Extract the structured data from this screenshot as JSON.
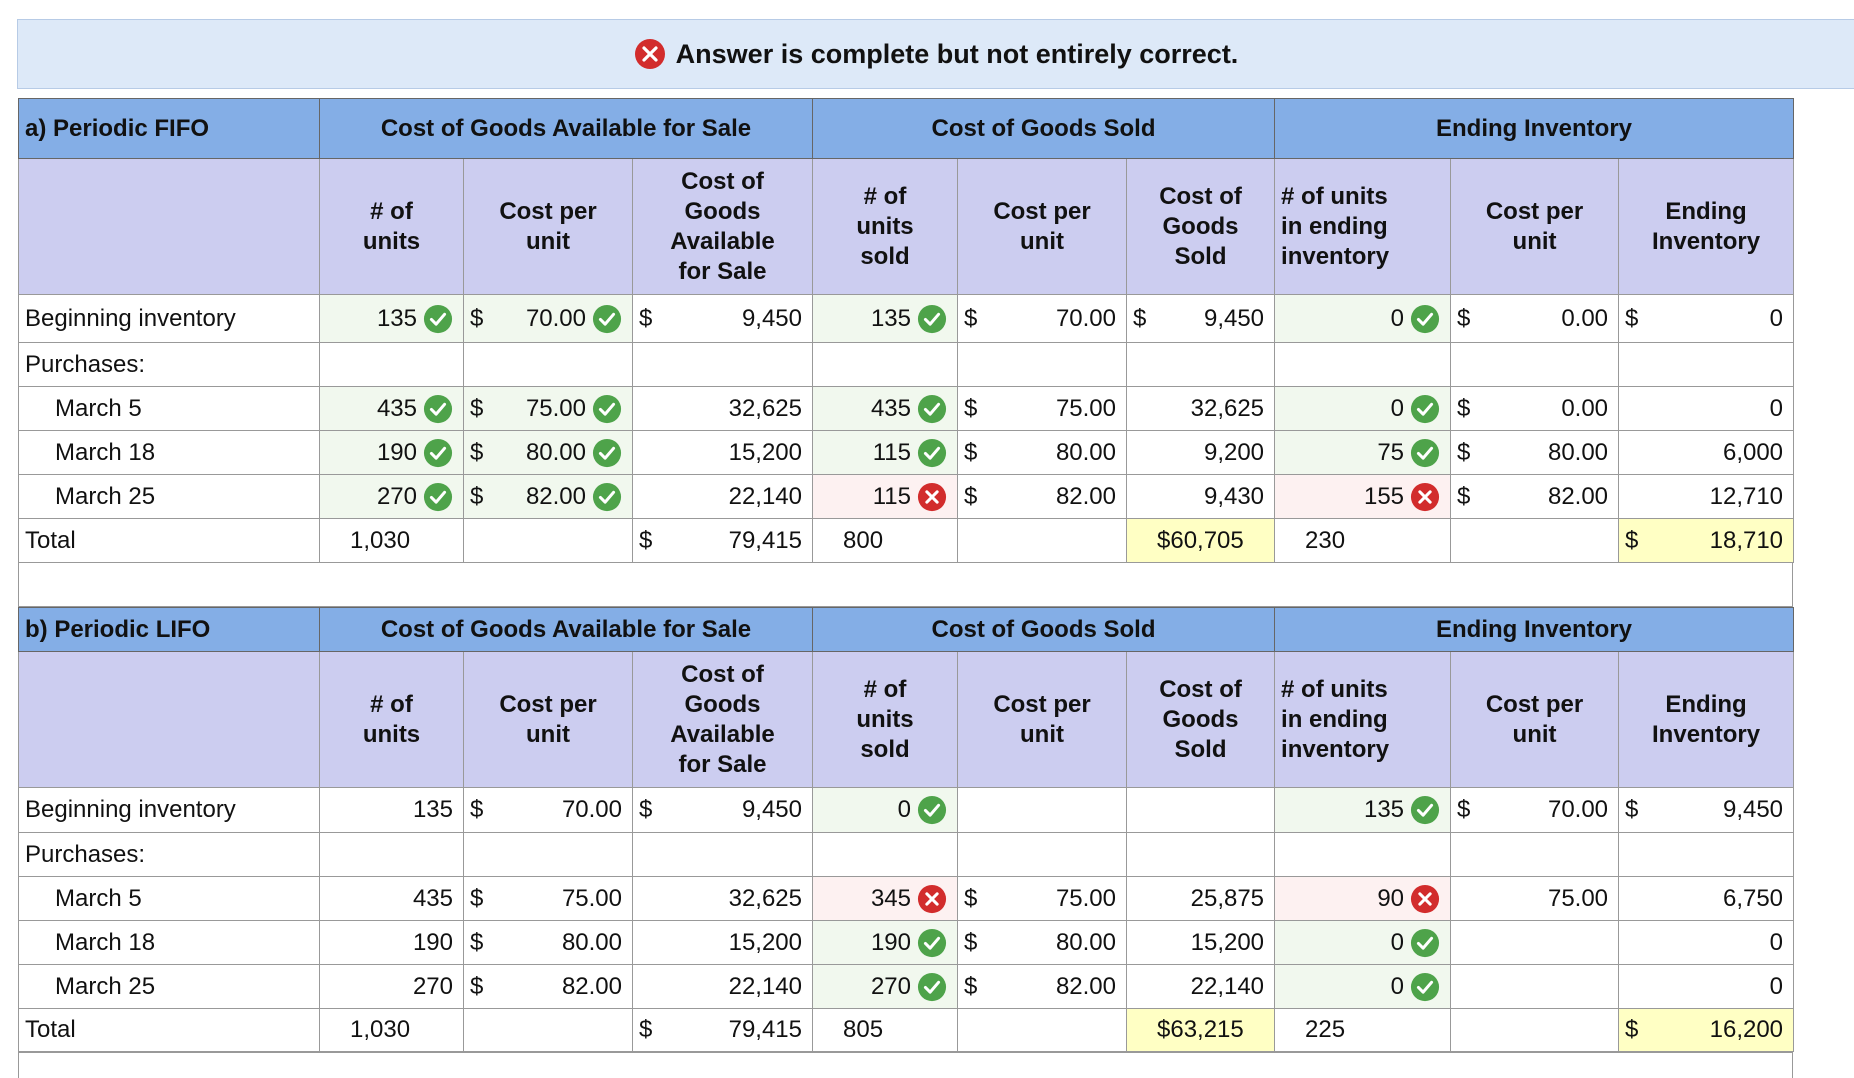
{
  "banner": {
    "text": "Answer is complete but not entirely correct."
  },
  "tables": [
    {
      "title": "a) Periodic FIFO",
      "groups": [
        "Cost of Goods Available for Sale",
        "Cost of Goods Sold",
        "Ending Inventory"
      ],
      "columns": [
        [
          "# of",
          "units"
        ],
        [
          "Cost per",
          "unit"
        ],
        [
          "Cost of",
          "Goods",
          "Available",
          "for Sale"
        ],
        [
          "# of",
          "units",
          "sold"
        ],
        [
          "Cost per",
          "unit"
        ],
        [
          "Cost of",
          "Goods",
          "Sold"
        ],
        [
          "# of units",
          "in ending",
          "inventory"
        ],
        [
          "Cost per",
          "unit"
        ],
        [
          "Ending",
          "Inventory"
        ]
      ],
      "rows": [
        {
          "label": "Beginning inventory",
          "cells": [
            {
              "text": "135",
              "status": "ok"
            },
            {
              "dollar": "$",
              "text": "70.00",
              "status": "ok"
            },
            {
              "dollar": "$",
              "text": "9,450"
            },
            {
              "text": "135",
              "status": "ok"
            },
            {
              "dollar": "$",
              "text": "70.00"
            },
            {
              "dollar": "$",
              "text": "9,450"
            },
            {
              "text": "0",
              "status": "ok"
            },
            {
              "dollar": "$",
              "text": "0.00"
            },
            {
              "dollar": "$",
              "text": "0"
            }
          ]
        },
        {
          "label": "Purchases:",
          "cells": [
            null,
            null,
            null,
            null,
            null,
            null,
            null,
            null,
            null
          ]
        },
        {
          "label": "March 5",
          "indent": true,
          "cells": [
            {
              "text": "435",
              "status": "ok"
            },
            {
              "dollar": "$",
              "text": "75.00",
              "status": "ok"
            },
            {
              "text": "32,625"
            },
            {
              "text": "435",
              "status": "ok"
            },
            {
              "dollar": "$",
              "text": "75.00"
            },
            {
              "text": "32,625"
            },
            {
              "text": "0",
              "status": "ok"
            },
            {
              "dollar": "$",
              "text": "0.00"
            },
            {
              "text": "0"
            }
          ]
        },
        {
          "label": "March 18",
          "indent": true,
          "cells": [
            {
              "text": "190",
              "status": "ok"
            },
            {
              "dollar": "$",
              "text": "80.00",
              "status": "ok"
            },
            {
              "text": "15,200"
            },
            {
              "text": "115",
              "status": "ok"
            },
            {
              "dollar": "$",
              "text": "80.00"
            },
            {
              "text": "9,200"
            },
            {
              "text": "75",
              "status": "ok"
            },
            {
              "dollar": "$",
              "text": "80.00"
            },
            {
              "text": "6,000"
            }
          ]
        },
        {
          "label": "March 25",
          "indent": true,
          "cells": [
            {
              "text": "270",
              "status": "ok"
            },
            {
              "dollar": "$",
              "text": "82.00",
              "status": "ok"
            },
            {
              "text": "22,140"
            },
            {
              "text": "115",
              "status": "bad"
            },
            {
              "dollar": "$",
              "text": "82.00"
            },
            {
              "text": "9,430"
            },
            {
              "text": "155",
              "status": "bad"
            },
            {
              "dollar": "$",
              "text": "82.00"
            },
            {
              "text": "12,710"
            }
          ]
        },
        {
          "label": "Total",
          "total": true,
          "cells": [
            {
              "text": "1,030"
            },
            null,
            {
              "dollar": "$",
              "text": "79,415"
            },
            {
              "text": "800"
            },
            null,
            {
              "text": "$60,705",
              "highlight": true
            },
            {
              "text": "230"
            },
            null,
            {
              "dollar": "$",
              "text": "18,710",
              "highlight": true
            }
          ]
        }
      ]
    },
    {
      "title": "b) Periodic LIFO",
      "groups": [
        "Cost of Goods Available for Sale",
        "Cost of Goods Sold",
        "Ending Inventory"
      ],
      "columns": [
        [
          "# of",
          "units"
        ],
        [
          "Cost per",
          "unit"
        ],
        [
          "Cost of",
          "Goods",
          "Available",
          "for Sale"
        ],
        [
          "# of",
          "units",
          "sold"
        ],
        [
          "Cost per",
          "unit"
        ],
        [
          "Cost of",
          "Goods",
          "Sold"
        ],
        [
          "# of units",
          "in ending",
          "inventory"
        ],
        [
          "Cost per",
          "unit"
        ],
        [
          "Ending",
          "Inventory"
        ]
      ],
      "rows": [
        {
          "label": "Beginning inventory",
          "cells": [
            {
              "text": "135"
            },
            {
              "dollar": "$",
              "text": "70.00"
            },
            {
              "dollar": "$",
              "text": "9,450"
            },
            {
              "text": "0",
              "status": "ok"
            },
            null,
            null,
            {
              "text": "135",
              "status": "ok"
            },
            {
              "dollar": "$",
              "text": "70.00"
            },
            {
              "dollar": "$",
              "text": "9,450"
            }
          ]
        },
        {
          "label": "Purchases:",
          "cells": [
            null,
            null,
            null,
            null,
            null,
            null,
            null,
            null,
            null
          ]
        },
        {
          "label": "March 5",
          "indent": true,
          "cells": [
            {
              "text": "435"
            },
            {
              "dollar": "$",
              "text": "75.00"
            },
            {
              "text": "32,625"
            },
            {
              "text": "345",
              "status": "bad"
            },
            {
              "dollar": "$",
              "text": "75.00"
            },
            {
              "text": "25,875"
            },
            {
              "text": "90",
              "status": "bad"
            },
            {
              "text": "75.00"
            },
            {
              "text": "6,750"
            }
          ]
        },
        {
          "label": "March 18",
          "indent": true,
          "cells": [
            {
              "text": "190"
            },
            {
              "dollar": "$",
              "text": "80.00"
            },
            {
              "text": "15,200"
            },
            {
              "text": "190",
              "status": "ok"
            },
            {
              "dollar": "$",
              "text": "80.00"
            },
            {
              "text": "15,200"
            },
            {
              "text": "0",
              "status": "ok"
            },
            null,
            {
              "text": "0"
            }
          ]
        },
        {
          "label": "March 25",
          "indent": true,
          "cells": [
            {
              "text": "270"
            },
            {
              "dollar": "$",
              "text": "82.00"
            },
            {
              "text": "22,140"
            },
            {
              "text": "270",
              "status": "ok"
            },
            {
              "dollar": "$",
              "text": "82.00"
            },
            {
              "text": "22,140"
            },
            {
              "text": "0",
              "status": "ok"
            },
            null,
            {
              "text": "0"
            }
          ]
        },
        {
          "label": "Total",
          "total": true,
          "cells": [
            {
              "text": "1,030"
            },
            null,
            {
              "dollar": "$",
              "text": "79,415"
            },
            {
              "text": "805"
            },
            null,
            {
              "text": "$63,215",
              "highlight": true
            },
            {
              "text": "225"
            },
            null,
            {
              "dollar": "$",
              "text": "16,200",
              "highlight": true
            }
          ]
        }
      ]
    }
  ]
}
